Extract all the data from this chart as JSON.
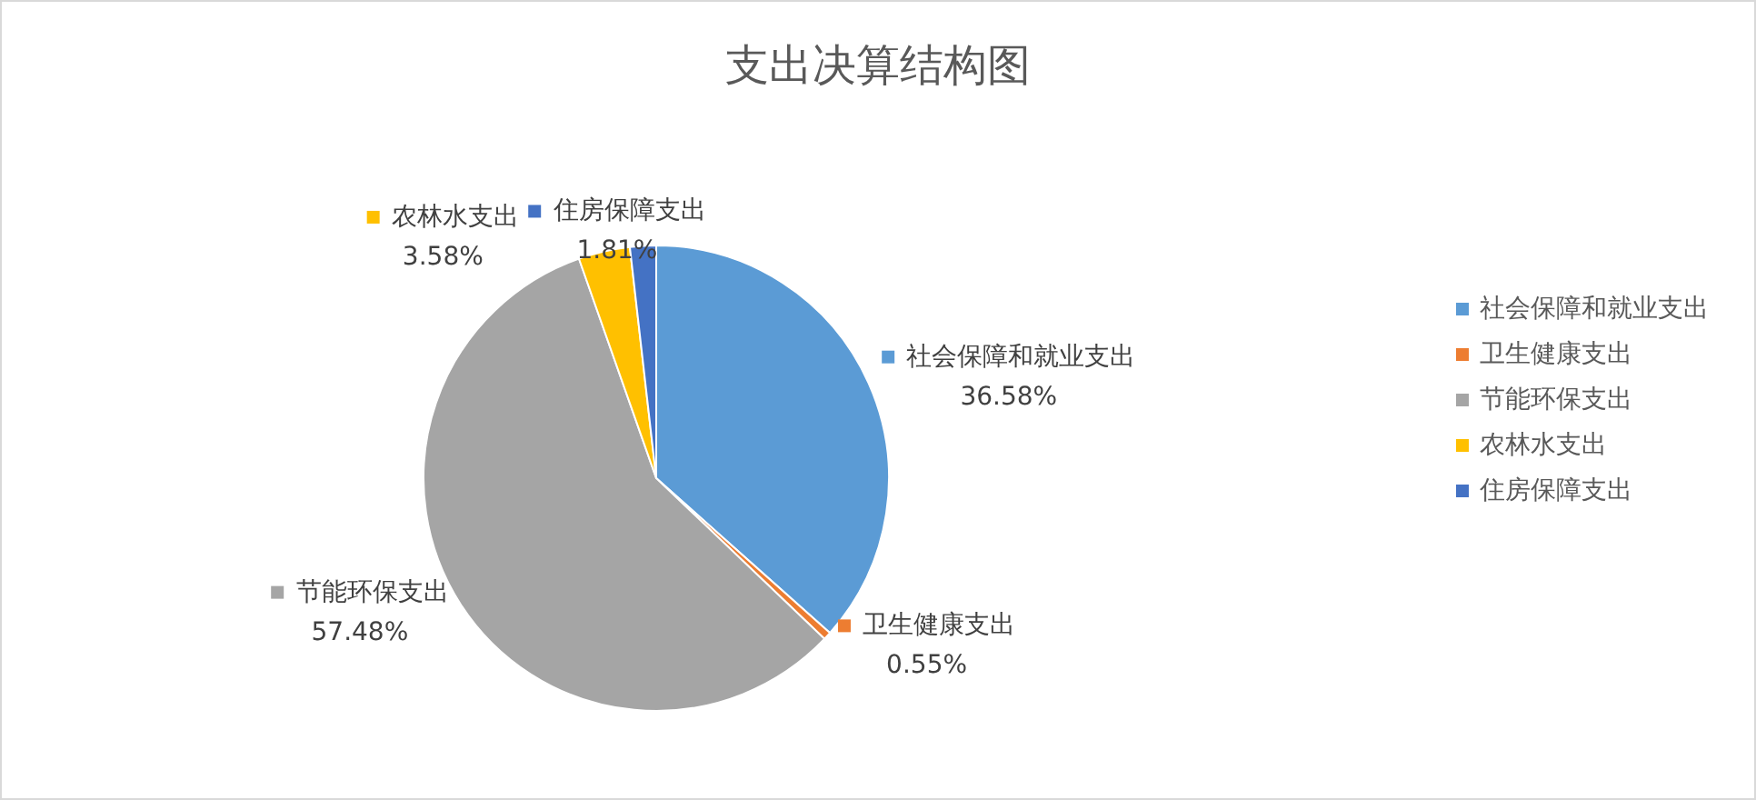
{
  "chart_data": {
    "type": "pie",
    "title": "支出决算结构图",
    "categories": [
      "社会保障和就业支出",
      "卫生健康支出",
      "节能环保支出",
      "农林水支出",
      "住房保障支出"
    ],
    "values": [
      36.58,
      0.55,
      57.48,
      3.58,
      1.81
    ],
    "value_labels": [
      "36.58%",
      "0.55%",
      "57.48%",
      "3.58%",
      "1.81%"
    ],
    "colors": [
      "#5b9bd5",
      "#ed7d31",
      "#a5a5a5",
      "#ffc000",
      "#4472c4"
    ],
    "legend": "right"
  }
}
